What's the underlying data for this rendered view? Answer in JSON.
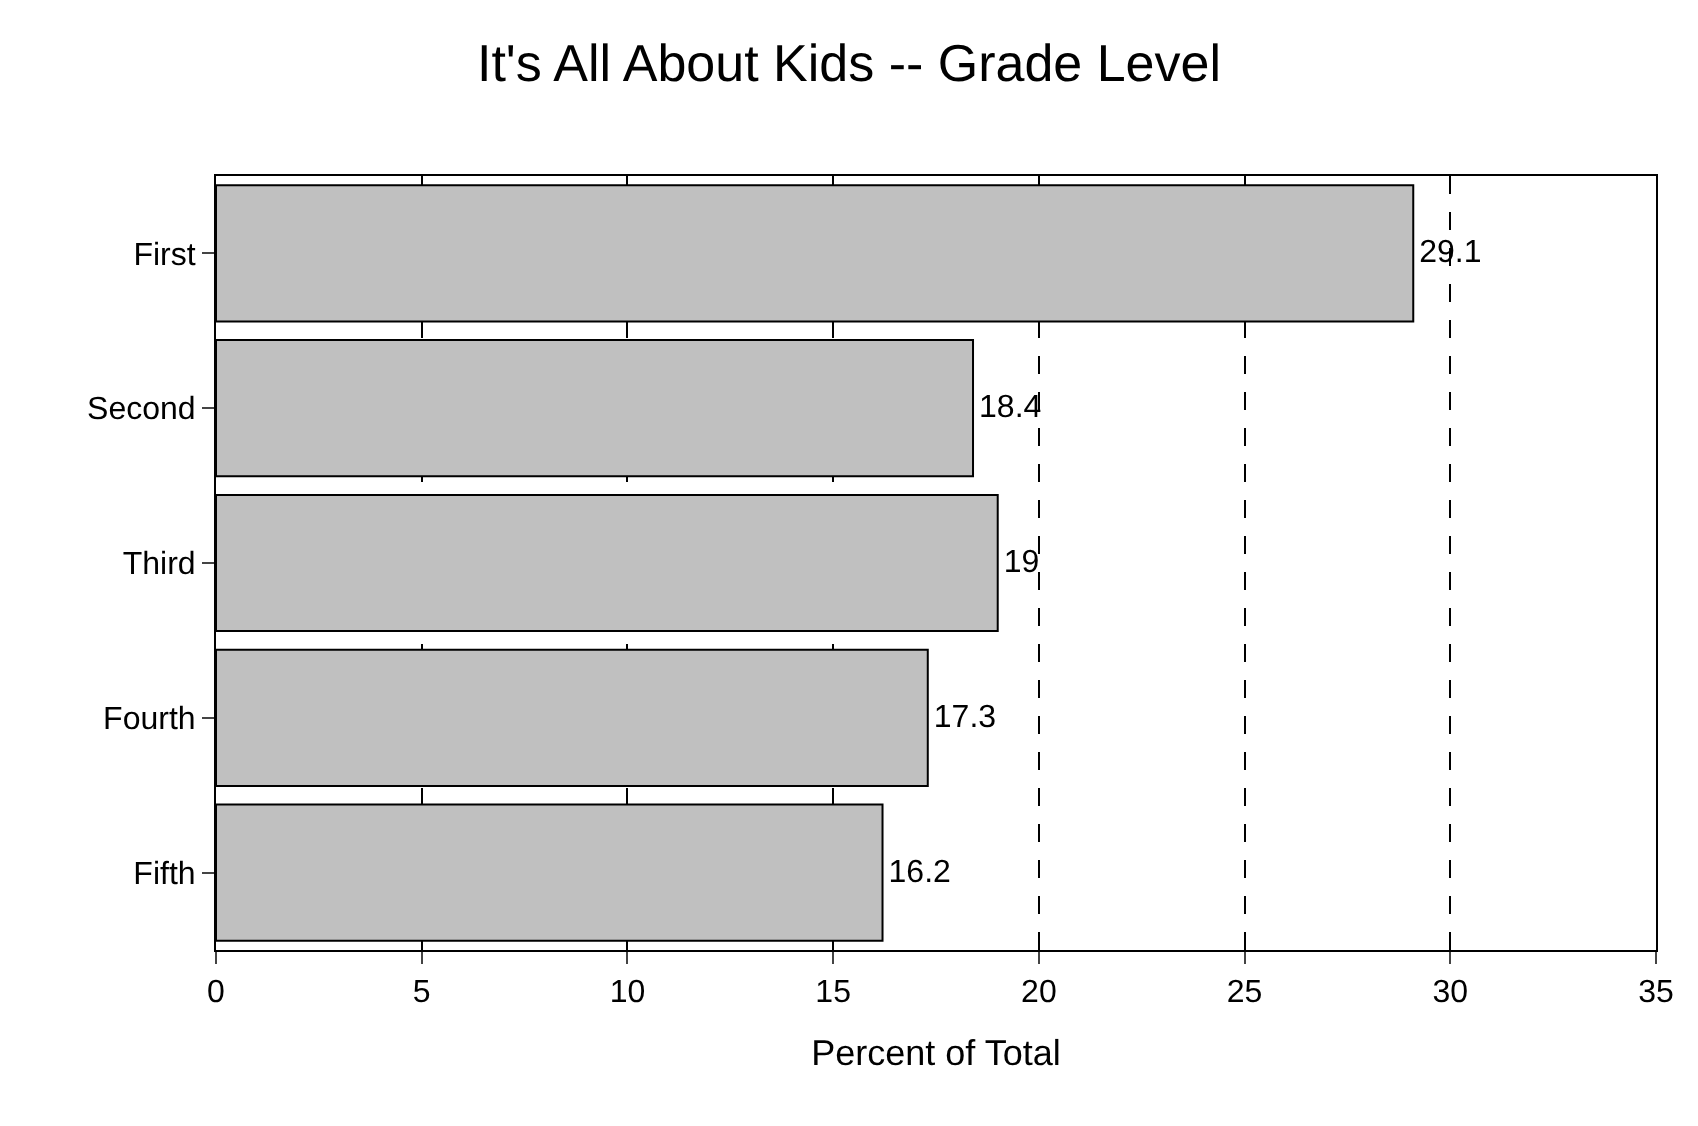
{
  "chart_data": {
    "type": "bar",
    "orientation": "horizontal",
    "title": "It's All About Kids -- Grade Level",
    "xlabel": "Percent of Total",
    "categories": [
      "First",
      "Second",
      "Third",
      "Fourth",
      "Fifth"
    ],
    "values": [
      29.1,
      18.4,
      19,
      17.3,
      16.2
    ],
    "color": "#c0c0c0",
    "data_labels": true,
    "xlim": [
      0,
      35
    ],
    "xticks": [
      0,
      5,
      10,
      15,
      20,
      25,
      30,
      35
    ],
    "grid": "x",
    "legend": false
  }
}
